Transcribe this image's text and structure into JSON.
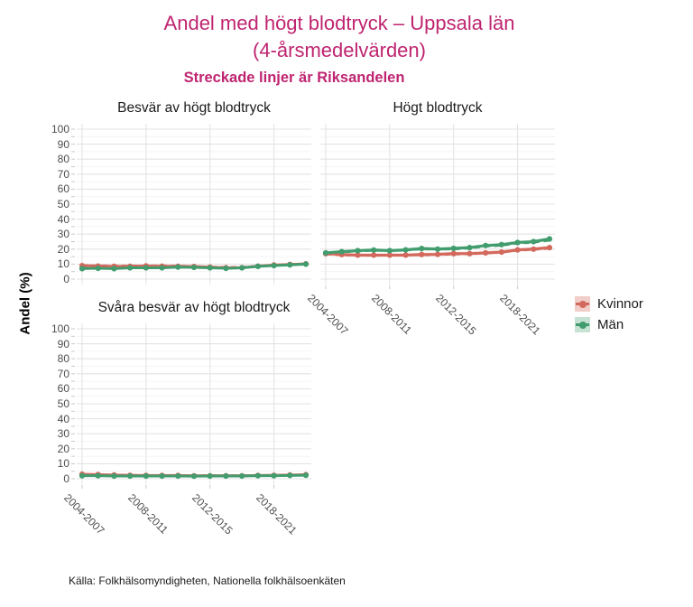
{
  "title": {
    "line1": "Andel med högt blodtryck – Uppsala län",
    "line2": "(4-årsmedelvärden)"
  },
  "subtitle": "Streckade linjer är Riksandelen",
  "ylabel": "Andel (%)",
  "caption": "Källa: Folkhälsomyndigheten, Nationella folkhälsoenkäten",
  "colors": {
    "title": "#bf2470",
    "kvinnor": "#d3685c",
    "man": "#419c6e",
    "kvinnor_ribbon": "#f1cec8",
    "man_ribbon": "#c6e2d2",
    "grid_major": "#e3e3e3",
    "grid_minor": "#f2f2f2",
    "axis_text": "#4d4d4d",
    "tick_mark": "#c9c9c9"
  },
  "legend": {
    "items": [
      {
        "label": "Kvinnor",
        "color_key": "kvinnor",
        "ribbon_key": "kvinnor_ribbon"
      },
      {
        "label": "Män",
        "color_key": "man",
        "ribbon_key": "man_ribbon"
      }
    ]
  },
  "chart_data": {
    "type": "line",
    "note": "Solid lines with points = Uppsala län, dashed lines = Riket (national share), shaded ribbons = confidence bands",
    "x_tick_labels": [
      "2004-2007",
      "2008-2011",
      "2012-2015",
      "2018-2021"
    ],
    "x_tick_indices": [
      0,
      4,
      8,
      12
    ],
    "n_points": 15,
    "ylim": [
      0,
      100
    ],
    "y_major_step": 10,
    "y_minor_step": 5,
    "panels": [
      {
        "title": "Besvär av högt blodtryck",
        "show_y_labels": true,
        "show_x_labels": false,
        "series": [
          {
            "name": "Kvinnor",
            "region": "Uppsala län",
            "style": "solid",
            "color_key": "kvinnor",
            "ribbon_key": "kvinnor_ribbon",
            "ribbon": 0.9,
            "values": [
              9,
              8.7,
              8.5,
              8.5,
              8.8,
              8.6,
              8.5,
              8.4,
              8,
              7.6,
              7.6,
              8.6,
              9.4,
              9.8,
              10.2
            ]
          },
          {
            "name": "Kvinnor",
            "region": "Riket",
            "style": "dashed",
            "color_key": "kvinnor",
            "ribbon": null,
            "values": [
              9.2,
              9,
              9,
              8.8,
              9,
              9,
              8.8,
              8.6,
              8.2,
              8,
              8,
              8.8,
              9.4,
              9.8,
              10
            ]
          },
          {
            "name": "Män",
            "region": "Uppsala län",
            "style": "solid",
            "color_key": "man",
            "ribbon_key": "man_ribbon",
            "ribbon": 0.8,
            "values": [
              7,
              7.2,
              7,
              7.5,
              7.5,
              7.5,
              8,
              7.8,
              7.5,
              7.2,
              7.5,
              8.5,
              9,
              9.5,
              10
            ]
          },
          {
            "name": "Män",
            "region": "Riket",
            "style": "dashed",
            "color_key": "man",
            "ribbon": null,
            "values": [
              7.4,
              7.4,
              7.2,
              7.5,
              7.7,
              7.7,
              8,
              7.9,
              7.7,
              7.4,
              7.7,
              8.4,
              9,
              9.4,
              9.8
            ]
          }
        ]
      },
      {
        "title": "Högt blodtryck",
        "show_y_labels": false,
        "show_x_labels": true,
        "series": [
          {
            "name": "Kvinnor",
            "region": "Uppsala län",
            "style": "solid",
            "color_key": "kvinnor",
            "ribbon_key": "kvinnor_ribbon",
            "ribbon": 1.2,
            "values": [
              17,
              16.4,
              16,
              16,
              16,
              16,
              16.4,
              16.5,
              17,
              17,
              17.5,
              18,
              19.5,
              20,
              21
            ]
          },
          {
            "name": "Kvinnor",
            "region": "Riket",
            "style": "dashed",
            "color_key": "kvinnor",
            "ribbon": null,
            "values": [
              16.6,
              16,
              15.7,
              15.7,
              15.8,
              16,
              16,
              16.2,
              16.5,
              16.8,
              17.2,
              18,
              19,
              19.7,
              20.4
            ]
          },
          {
            "name": "Män",
            "region": "Uppsala län",
            "style": "solid",
            "color_key": "man",
            "ribbon_key": "man_ribbon",
            "ribbon": 1.2,
            "values": [
              17.5,
              18.3,
              19,
              19.4,
              19,
              19.5,
              20.4,
              20,
              20.5,
              21,
              22.4,
              23,
              24.4,
              25,
              26.8
            ]
          },
          {
            "name": "Män",
            "region": "Riket",
            "style": "dashed",
            "color_key": "man",
            "ribbon": null,
            "values": [
              17.4,
              18,
              18.6,
              19,
              19,
              19.2,
              20,
              19.8,
              20,
              20.5,
              21.8,
              22.4,
              23.8,
              24.4,
              25.8
            ]
          }
        ]
      },
      {
        "title": "Svåra besvär av högt blodtryck",
        "show_y_labels": true,
        "show_x_labels": true,
        "series": [
          {
            "name": "Kvinnor",
            "region": "Uppsala län",
            "style": "solid",
            "color_key": "kvinnor",
            "ribbon_key": "kvinnor_ribbon",
            "ribbon": 0.7,
            "values": [
              3,
              2.8,
              2.5,
              2.3,
              2.2,
              2.2,
              2.2,
              2,
              2,
              2,
              2,
              2.2,
              2.3,
              2.5,
              2.7
            ]
          },
          {
            "name": "Kvinnor",
            "region": "Riket",
            "style": "dashed",
            "color_key": "kvinnor",
            "ribbon": null,
            "values": [
              2.8,
              2.6,
              2.5,
              2.4,
              2.3,
              2.3,
              2.2,
              2.2,
              2.2,
              2.2,
              2.2,
              2.3,
              2.4,
              2.5,
              2.6
            ]
          },
          {
            "name": "Män",
            "region": "Uppsala län",
            "style": "solid",
            "color_key": "man",
            "ribbon_key": "man_ribbon",
            "ribbon": 0.5,
            "values": [
              2,
              2,
              1.8,
              1.8,
              1.8,
              1.8,
              1.8,
              1.7,
              1.8,
              1.8,
              1.8,
              2,
              2,
              2.2,
              2.3
            ]
          },
          {
            "name": "Män",
            "region": "Riket",
            "style": "dashed",
            "color_key": "man",
            "ribbon": null,
            "values": [
              2.2,
              2.1,
              2,
              2,
              2,
              2,
              1.9,
              1.9,
              1.9,
              2,
              2,
              2.1,
              2.1,
              2.2,
              2.3
            ]
          }
        ]
      }
    ]
  }
}
